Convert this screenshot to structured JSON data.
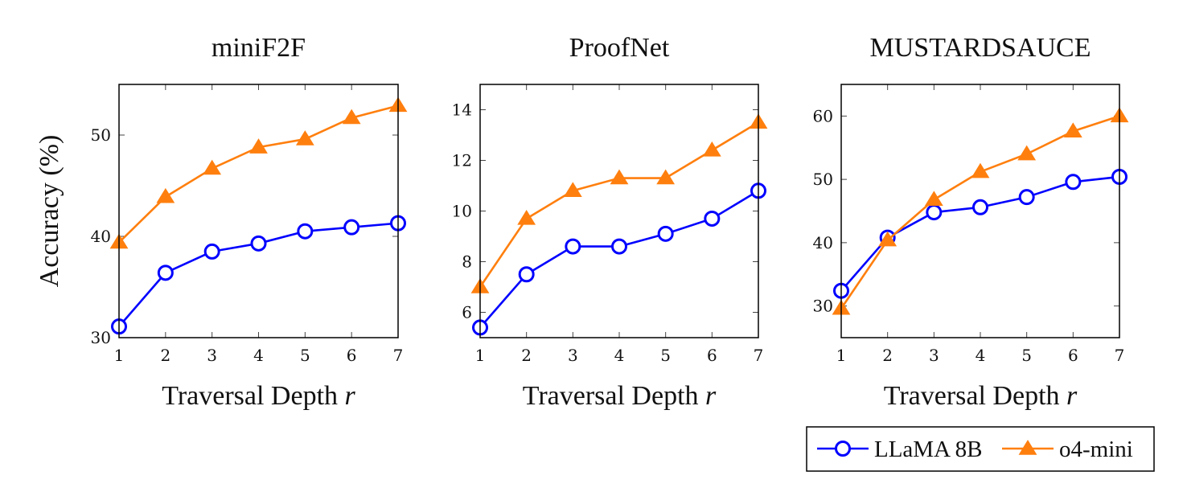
{
  "chart_data": [
    {
      "type": "line",
      "title": "miniF2F",
      "xlabel": "Traversal Depth ",
      "xlabel_var": "r",
      "ylabel": "Accuracy (%)",
      "x": [
        1,
        2,
        3,
        4,
        5,
        6,
        7
      ],
      "xlim": [
        1,
        7
      ],
      "ylim": [
        30,
        55
      ],
      "yticks": [
        30,
        40,
        50
      ],
      "grid": false,
      "series": [
        {
          "name": "LLaMA 8B",
          "color": "#0000ff",
          "marker": "circle",
          "values": [
            31.1,
            36.4,
            38.5,
            39.3,
            40.5,
            40.9,
            41.3
          ]
        },
        {
          "name": "o4-mini",
          "color": "#ff7f0e",
          "marker": "triangle",
          "values": [
            39.4,
            43.9,
            46.7,
            48.8,
            49.6,
            51.7,
            52.9
          ]
        }
      ]
    },
    {
      "type": "line",
      "title": "ProofNet",
      "xlabel": "Traversal Depth ",
      "xlabel_var": "r",
      "ylabel": "",
      "x": [
        1,
        2,
        3,
        4,
        5,
        6,
        7
      ],
      "xlim": [
        1,
        7
      ],
      "ylim": [
        5,
        15
      ],
      "yticks": [
        6,
        8,
        10,
        12,
        14
      ],
      "grid": false,
      "series": [
        {
          "name": "LLaMA 8B",
          "color": "#0000ff",
          "marker": "circle",
          "values": [
            5.4,
            7.5,
            8.6,
            8.6,
            9.1,
            9.7,
            10.8
          ]
        },
        {
          "name": "o4-mini",
          "color": "#ff7f0e",
          "marker": "triangle",
          "values": [
            7.0,
            9.7,
            10.8,
            11.3,
            11.3,
            12.4,
            13.5
          ]
        }
      ]
    },
    {
      "type": "line",
      "title": "MUSTARDSAUCE",
      "xlabel": "Traversal Depth ",
      "xlabel_var": "r",
      "ylabel": "",
      "x": [
        1,
        2,
        3,
        4,
        5,
        6,
        7
      ],
      "xlim": [
        1,
        7
      ],
      "ylim": [
        25,
        65
      ],
      "yticks": [
        30,
        40,
        50,
        60
      ],
      "grid": false,
      "series": [
        {
          "name": "LLaMA 8B",
          "color": "#0000ff",
          "marker": "circle",
          "values": [
            32.4,
            40.8,
            44.8,
            45.6,
            47.2,
            49.6,
            50.4
          ]
        },
        {
          "name": "o4-mini",
          "color": "#ff7f0e",
          "marker": "triangle",
          "values": [
            29.6,
            40.4,
            46.8,
            51.2,
            54.0,
            57.6,
            60.0
          ]
        }
      ]
    }
  ],
  "legend": {
    "placement": "bottom-right",
    "items": [
      {
        "label": "LLaMA 8B",
        "color": "#0000ff",
        "marker": "circle"
      },
      {
        "label": "o4-mini",
        "color": "#ff7f0e",
        "marker": "triangle"
      }
    ]
  }
}
